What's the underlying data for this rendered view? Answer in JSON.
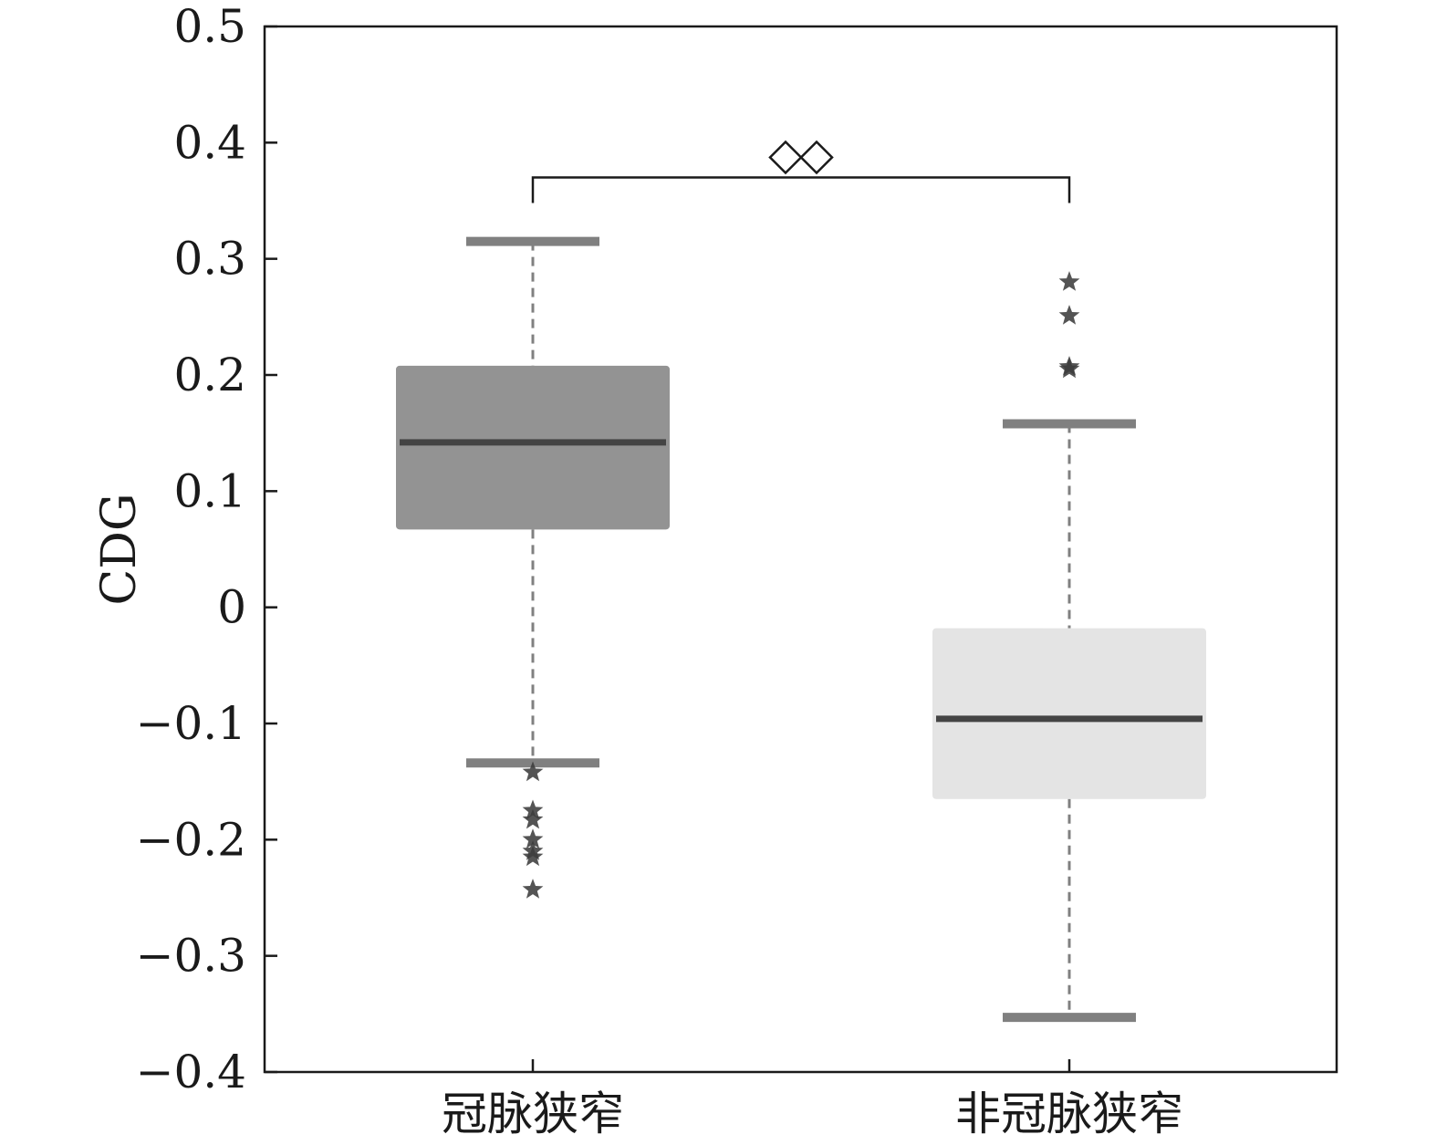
{
  "chart_data": {
    "type": "boxplot",
    "ylabel": "CDG",
    "ylim": [
      -0.4,
      0.5
    ],
    "yticks": [
      -0.4,
      -0.3,
      -0.2,
      -0.1,
      0,
      0.1,
      0.2,
      0.3,
      0.4,
      0.5
    ],
    "ytick_labels": [
      "−0.4",
      "−0.3",
      "−0.2",
      "−0.1",
      "0",
      "0.1",
      "0.2",
      "0.3",
      "0.4",
      "0.5"
    ],
    "grid": false,
    "categories": [
      "冠脉狭窄",
      "非冠脉狭窄"
    ],
    "boxes": [
      {
        "category": "冠脉狭窄",
        "whisker_low": -0.134,
        "q1": 0.067,
        "median": 0.142,
        "q3": 0.208,
        "whisker_high": 0.315,
        "outliers": [
          -0.142,
          -0.175,
          -0.183,
          -0.2,
          -0.21,
          -0.215,
          -0.243
        ],
        "color": "#939393"
      },
      {
        "category": "非冠脉狭窄",
        "whisker_low": -0.353,
        "q1": -0.165,
        "median": -0.096,
        "q3": -0.018,
        "whisker_high": 0.158,
        "outliers": [
          0.28,
          0.251,
          0.205,
          0.207
        ],
        "color": "#e4e4e4"
      }
    ],
    "significance": {
      "between": [
        "冠脉狭窄",
        "非冠脉狭窄"
      ],
      "y": 0.37,
      "symbol": "◇◇"
    },
    "median_color": "#444444",
    "whisker_color": "#808080",
    "outlier_color": "#3c3c3c"
  }
}
